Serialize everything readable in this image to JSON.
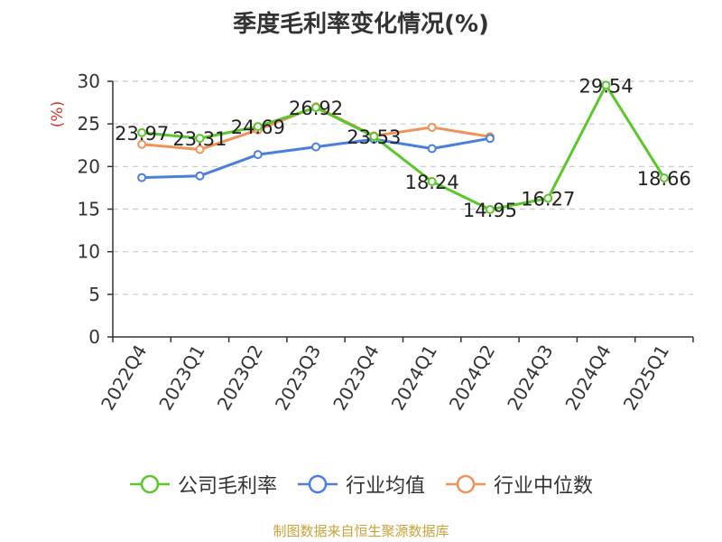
{
  "chart_data": {
    "type": "line",
    "title": "季度毛利率变化情况(%)",
    "ylabel": "(%)",
    "xlabel": "",
    "categories": [
      "2022Q4",
      "2023Q1",
      "2023Q2",
      "2023Q3",
      "2023Q4",
      "2024Q1",
      "2024Q2",
      "2024Q3",
      "2024Q4",
      "2025Q1"
    ],
    "ylim": [
      0,
      30
    ],
    "yticks": [
      0,
      5,
      10,
      15,
      20,
      25,
      30
    ],
    "grid": true,
    "legend_position": "bottom",
    "series": [
      {
        "name": "公司毛利率",
        "color": "#5cc72a",
        "values": [
          23.97,
          23.31,
          24.69,
          26.92,
          23.53,
          18.24,
          14.95,
          16.27,
          29.54,
          18.66
        ],
        "labels": [
          "23.97",
          "23.31",
          "24.69",
          "26.92",
          "23.53",
          "18.24",
          "14.95",
          "16.27",
          "29.54",
          "18.66"
        ]
      },
      {
        "name": "行业均值",
        "color": "#4a7fdb",
        "values": [
          18.7,
          18.9,
          21.4,
          22.3,
          23.2,
          22.1,
          23.3,
          null,
          null,
          null
        ]
      },
      {
        "name": "行业中位数",
        "color": "#f0925a",
        "values": [
          22.6,
          22.0,
          24.3,
          27.0,
          23.6,
          24.6,
          23.5,
          null,
          null,
          null
        ]
      }
    ]
  },
  "source_note": "制图数据来自恒生聚源数据库"
}
